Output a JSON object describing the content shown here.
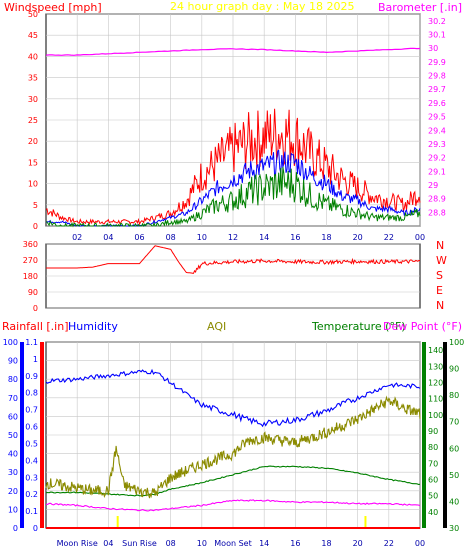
{
  "page": {
    "title": "24 hour graph day : May 18 2025"
  },
  "colors": {
    "background": "#ffffff",
    "plot_bg": "#ffffff",
    "grid": "#c8c8c8",
    "axis": "#000000",
    "title": "#ffff00",
    "windspeed": "#ff0000",
    "windgust": "#0000ff",
    "windavg": "#008000",
    "barometer": "#ff00ff",
    "wind_dir": "#ff0000",
    "rainfall": "#ff0000",
    "humidity": "#0000ff",
    "aqi": "#8b8b00",
    "temperature": "#008000",
    "dewpoint": "#ff00ff",
    "marker": "#ffff00"
  },
  "chart_data": [
    {
      "id": "wind-barometer",
      "type": "line",
      "title": "24 hour graph day : May 18 2025",
      "left_label": "Windspeed [mph]",
      "right_label": "Barometer [.in]",
      "x_ticks": [
        "02",
        "04",
        "06",
        "08",
        "10",
        "12",
        "14",
        "16",
        "18",
        "20",
        "22",
        "00"
      ],
      "x_range": [
        0,
        24
      ],
      "y_left": {
        "range": [
          0,
          50
        ],
        "ticks": [
          "0",
          "5",
          "10",
          "15",
          "20",
          "25",
          "30",
          "35",
          "40",
          "45",
          "50"
        ]
      },
      "y_right": {
        "range": [
          28.7,
          30.25
        ],
        "ticks": [
          "28.8",
          "28.9",
          "29",
          "29.1",
          "29.2",
          "29.3",
          "29.4",
          "29.5",
          "29.6",
          "29.7",
          "29.8",
          "29.9",
          "30",
          "30.1",
          "30.2"
        ]
      },
      "grid": true,
      "series": [
        {
          "key": "gust",
          "axis": "left",
          "x": [
            0,
            1,
            2,
            3,
            4,
            5,
            6,
            7,
            8,
            9,
            10,
            11,
            12,
            13,
            14,
            15,
            16,
            17,
            18,
            19,
            20,
            21,
            22,
            23,
            24
          ],
          "values": [
            4,
            2,
            1,
            1,
            1,
            1,
            1,
            2,
            3,
            6,
            12,
            15,
            18,
            20,
            21,
            22,
            21,
            17,
            14,
            11,
            9,
            7,
            6,
            5,
            8
          ]
        },
        {
          "key": "avg",
          "axis": "left",
          "x": [
            0,
            1,
            2,
            3,
            4,
            5,
            6,
            7,
            8,
            9,
            10,
            11,
            12,
            13,
            14,
            15,
            16,
            17,
            18,
            19,
            20,
            21,
            22,
            23,
            24
          ],
          "values": [
            1,
            1,
            0,
            0,
            0,
            0,
            0,
            1,
            2,
            3,
            6,
            9,
            11,
            13,
            14,
            15,
            15,
            12,
            10,
            7,
            6,
            4,
            4,
            3,
            4
          ]
        },
        {
          "key": "speed",
          "axis": "left",
          "x": [
            0,
            1,
            2,
            3,
            4,
            5,
            6,
            7,
            8,
            9,
            10,
            11,
            12,
            13,
            14,
            15,
            16,
            17,
            18,
            19,
            20,
            21,
            22,
            23,
            24
          ],
          "values": [
            1,
            0,
            0,
            0,
            0,
            0,
            0,
            0,
            1,
            1,
            3,
            5,
            6,
            8,
            9,
            10,
            10,
            7,
            5,
            4,
            3,
            2,
            2,
            2,
            3
          ]
        },
        {
          "key": "barometer",
          "axis": "right",
          "x": [
            0,
            2,
            4,
            6,
            8,
            10,
            12,
            14,
            16,
            18,
            20,
            22,
            24
          ],
          "values": [
            29.95,
            29.95,
            29.96,
            29.97,
            29.98,
            29.99,
            29.995,
            29.99,
            29.98,
            29.97,
            29.98,
            29.99,
            30.0
          ]
        }
      ]
    },
    {
      "id": "wind-direction",
      "type": "line",
      "y_left": {
        "range": [
          0,
          360
        ],
        "ticks": [
          "0",
          "90",
          "180",
          "270",
          "360"
        ]
      },
      "compass": [
        "N",
        "W",
        "S",
        "E",
        "N"
      ],
      "x_range": [
        0,
        24
      ],
      "series": [
        {
          "key": "direction",
          "x": [
            0,
            1,
            2,
            3,
            4,
            5,
            6,
            6.5,
            7,
            7.5,
            8,
            8.5,
            9,
            9.5,
            10,
            12,
            14,
            16,
            18,
            20,
            22,
            24
          ],
          "values": [
            225,
            225,
            225,
            230,
            250,
            250,
            250,
            300,
            350,
            340,
            330,
            260,
            200,
            195,
            250,
            260,
            265,
            260,
            258,
            262,
            260,
            262
          ]
        }
      ]
    },
    {
      "id": "humidity-temperature",
      "type": "line",
      "left_label_rain": "Rainfall [.in]",
      "left_label_humidity": "Humidity",
      "center_label": "AQI",
      "right_label_temp": "Temperature (°F)",
      "right_label_dew": "Dew Point (°F)",
      "x_ticks": [
        "Moon Rise",
        "04",
        "Sun Rise",
        "08",
        "10",
        "Moon Set",
        "14",
        "16",
        "18",
        "20",
        "22",
        "00"
      ],
      "x_range": [
        0,
        24
      ],
      "y_humidity": {
        "range": [
          0,
          100
        ],
        "ticks": [
          "0",
          "10",
          "20",
          "30",
          "40",
          "50",
          "60",
          "70",
          "80",
          "90",
          "100"
        ]
      },
      "y_rain": {
        "range": [
          0,
          1.1
        ],
        "ticks": [
          "0",
          "0.1",
          "0.2",
          "0.3",
          "0.4",
          "0.5",
          "0.6",
          "0.7",
          "0.8",
          "0.9",
          "1",
          "1.1"
        ]
      },
      "y_temp": {
        "range": [
          30,
          145
        ],
        "ticks": [
          "40",
          "50",
          "60",
          "70",
          "80",
          "90",
          "100",
          "110",
          "120",
          "130",
          "140"
        ]
      },
      "y_aqi": {
        "range": [
          30,
          100
        ],
        "ticks": [
          "30",
          "40",
          "50",
          "60",
          "70",
          "80",
          "90",
          "100"
        ]
      },
      "grid": true,
      "series": [
        {
          "key": "humidity",
          "x": [
            0,
            2,
            4,
            6,
            7,
            8,
            10,
            12,
            13,
            14,
            16,
            18,
            20,
            22,
            24
          ],
          "values": [
            79,
            80,
            82,
            84,
            84,
            78,
            66,
            61,
            58,
            56,
            58,
            63,
            70,
            77,
            76
          ]
        },
        {
          "key": "temperature",
          "x": [
            0,
            2,
            4,
            6,
            7,
            8,
            10,
            12,
            14,
            16,
            18,
            20,
            22,
            24
          ],
          "values": [
            52,
            52,
            51,
            50,
            51,
            54,
            58,
            63,
            68,
            68,
            67,
            64,
            60,
            57
          ]
        },
        {
          "key": "dewpoint",
          "x": [
            0,
            2,
            4,
            6,
            7,
            8,
            10,
            12,
            14,
            16,
            18,
            20,
            22,
            24
          ],
          "values": [
            45,
            44,
            42,
            41,
            41,
            42,
            44,
            47,
            47,
            46,
            46,
            45,
            45,
            44
          ]
        },
        {
          "key": "aqi",
          "x": [
            0,
            1,
            2,
            3,
            4,
            4.5,
            5,
            6,
            7,
            8,
            10,
            12,
            13,
            14,
            16,
            18,
            20,
            22,
            23,
            24
          ],
          "values": [
            47,
            46,
            45,
            44,
            44,
            60,
            46,
            44,
            43,
            49,
            54,
            58,
            63,
            64,
            62,
            66,
            71,
            78,
            75,
            73
          ]
        },
        {
          "key": "rainfall",
          "x": [
            0,
            24
          ],
          "values": [
            0,
            0
          ]
        }
      ],
      "markers": [
        4.6,
        20.5
      ]
    }
  ]
}
